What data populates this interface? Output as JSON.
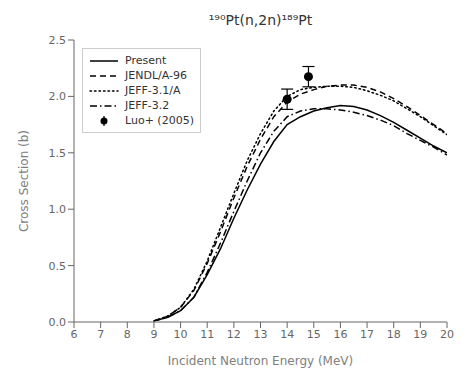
{
  "chart_data": {
    "type": "line",
    "title": "¹⁹⁰Pt(n,2n)¹⁸⁹Pt",
    "xlabel": "Incident Neutron Energy (MeV)",
    "ylabel": "Cross Section (b)",
    "xlim": [
      6,
      20
    ],
    "ylim": [
      0,
      2.5
    ],
    "xticks": [
      6,
      7,
      8,
      9,
      10,
      11,
      12,
      13,
      14,
      15,
      16,
      17,
      18,
      19,
      20
    ],
    "yticks": [
      {
        "value": 0.0,
        "label": "0.0"
      },
      {
        "value": 0.5,
        "label": "0.5"
      },
      {
        "value": 1.0,
        "label": "1.0"
      },
      {
        "value": 1.5,
        "label": "1.5"
      },
      {
        "value": 2.0,
        "label": "2.0"
      },
      {
        "value": 2.5,
        "label": "2.5"
      }
    ],
    "grid": false,
    "legend": "upper left",
    "series": [
      {
        "name": "Present",
        "type": "line",
        "color": "black",
        "line_style": "solid",
        "x": [
          9.0,
          9.5,
          10.0,
          10.5,
          11.0,
          11.5,
          12.0,
          12.5,
          13.0,
          13.5,
          14.0,
          14.5,
          15.0,
          15.5,
          16.0,
          16.5,
          17.0,
          17.5,
          18.0,
          18.5,
          19.0,
          19.5,
          20.0
        ],
        "values": [
          0.01,
          0.04,
          0.1,
          0.22,
          0.42,
          0.65,
          0.92,
          1.17,
          1.4,
          1.6,
          1.75,
          1.82,
          1.87,
          1.9,
          1.92,
          1.91,
          1.88,
          1.83,
          1.77,
          1.7,
          1.63,
          1.56,
          1.5
        ]
      },
      {
        "name": "JENDL/A-96",
        "type": "line",
        "color": "black",
        "line_style": "dashed",
        "x": [
          9.0,
          9.5,
          10.0,
          10.5,
          11.0,
          11.5,
          12.0,
          12.5,
          13.0,
          13.5,
          14.0,
          14.5,
          15.0,
          15.5,
          16.0,
          16.5,
          17.0,
          17.5,
          18.0,
          18.5,
          19.0,
          19.5,
          20.0
        ],
        "values": [
          0.01,
          0.05,
          0.13,
          0.28,
          0.52,
          0.8,
          1.1,
          1.38,
          1.62,
          1.82,
          1.95,
          2.02,
          2.06,
          2.09,
          2.1,
          2.1,
          2.08,
          2.04,
          1.98,
          1.91,
          1.83,
          1.75,
          1.67
        ]
      },
      {
        "name": "JEFF-3.1/A",
        "type": "line",
        "color": "black",
        "line_style": "dotted",
        "x": [
          9.0,
          9.5,
          10.0,
          10.5,
          11.0,
          11.5,
          12.0,
          12.5,
          13.0,
          13.5,
          14.0,
          14.5,
          15.0,
          15.5,
          16.0,
          16.5,
          17.0,
          17.5,
          18.0,
          18.5,
          19.0,
          19.5,
          20.0
        ],
        "values": [
          0.01,
          0.05,
          0.13,
          0.29,
          0.54,
          0.84,
          1.14,
          1.43,
          1.67,
          1.87,
          2.0,
          2.06,
          2.08,
          2.09,
          2.09,
          2.08,
          2.05,
          2.01,
          1.96,
          1.89,
          1.82,
          1.74,
          1.66
        ]
      },
      {
        "name": "JEFF-3.2",
        "type": "line",
        "color": "black",
        "line_style": "dashdot",
        "x": [
          9.0,
          9.5,
          10.0,
          10.5,
          11.0,
          11.5,
          12.0,
          12.5,
          13.0,
          13.5,
          14.0,
          14.5,
          15.0,
          15.5,
          16.0,
          16.5,
          17.0,
          17.5,
          18.0,
          18.5,
          19.0,
          19.5,
          20.0
        ],
        "values": [
          0.01,
          0.04,
          0.1,
          0.22,
          0.44,
          0.7,
          0.98,
          1.25,
          1.5,
          1.69,
          1.82,
          1.87,
          1.89,
          1.89,
          1.88,
          1.86,
          1.83,
          1.79,
          1.74,
          1.67,
          1.61,
          1.55,
          1.48
        ]
      },
      {
        "name": "Luo+ (2005)",
        "type": "scatter",
        "color": "black",
        "marker": "o",
        "x": [
          14.0,
          14.8
        ],
        "values": [
          1.975,
          2.175
        ],
        "errors": [
          0.09,
          0.09
        ]
      }
    ]
  }
}
